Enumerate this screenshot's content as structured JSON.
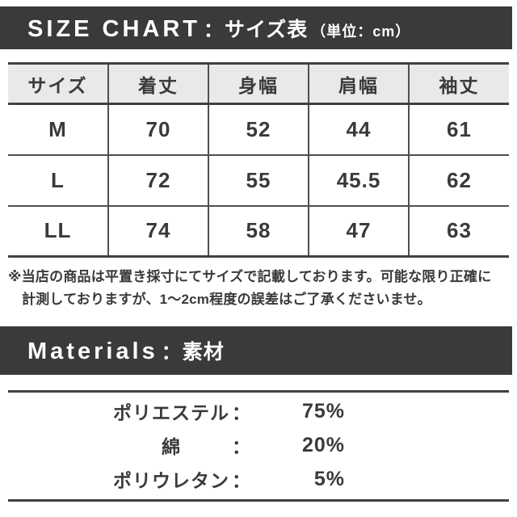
{
  "size_chart": {
    "banner": {
      "title_en": "SIZE CHART",
      "separator": "：",
      "title_ja": "サイズ表",
      "unit": "（単位：cm）"
    },
    "table": {
      "headers": [
        "サイズ",
        "着丈",
        "身幅",
        "肩幅",
        "袖丈"
      ],
      "rows": [
        {
          "size": "M",
          "values": [
            "70",
            "52",
            "44",
            "61"
          ]
        },
        {
          "size": "L",
          "values": [
            "72",
            "55",
            "45.5",
            "62"
          ]
        },
        {
          "size": "LL",
          "values": [
            "74",
            "58",
            "47",
            "63"
          ]
        }
      ]
    },
    "note": {
      "line1": "※当店の商品は平置き採寸にてサイズで記載しております。可能な限り正確に",
      "line2": "計測しておりますが、1〜2cm程度の誤差はご了承くださいませ。"
    }
  },
  "materials": {
    "banner": {
      "title_en": "Materials",
      "separator": "：",
      "title_ja": "素材"
    },
    "items": [
      {
        "name": "ポリエステル",
        "colon": "：",
        "value": "75%"
      },
      {
        "name": "綿",
        "colon": "：",
        "value": "20%"
      },
      {
        "name": "ポリウレタン",
        "colon": "：",
        "value": "5%"
      }
    ]
  },
  "colors": {
    "banner_bg": "#3a3a3a",
    "header_row_bg": "#e9e9e9",
    "text": "#3a3a3a",
    "border_heavy": "#414141",
    "border_light": "#4f4f4f"
  }
}
